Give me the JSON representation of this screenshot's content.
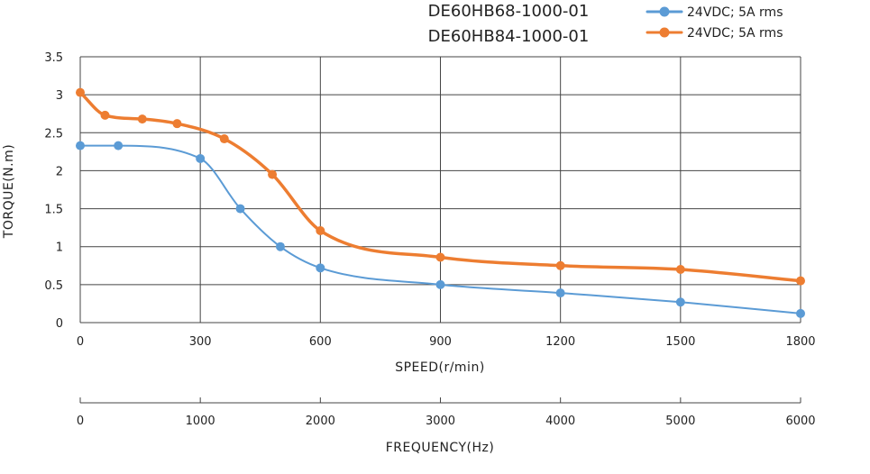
{
  "chart_data": {
    "type": "line",
    "titles": [
      "DE60HB68-1000-01",
      "DE60HB84-1000-01"
    ],
    "xlabel": "SPEED(r/min)",
    "ylabel": "TORQUE(N.m)",
    "secondary_xlabel": "FREQUENCY(Hz)",
    "xlim": [
      0,
      1800
    ],
    "ylim": [
      0,
      3.5
    ],
    "x_ticks": [
      "0",
      "300",
      "600",
      "900",
      "1200",
      "1500",
      "1800"
    ],
    "y_ticks": [
      "0",
      "0.5",
      "1",
      "1.5",
      "2",
      "2.5",
      "3",
      "3.5"
    ],
    "secondary_x_ticks": [
      "0",
      "1000",
      "2000",
      "3000",
      "4000",
      "5000",
      "6000"
    ],
    "grid": true,
    "legend_position": "top-right",
    "series": [
      {
        "name": "24VDC; 5A rms",
        "color": "#5b9bd5",
        "x": [
          0,
          95,
          300,
          400,
          500,
          600,
          900,
          1200,
          1500,
          1800
        ],
        "y": [
          2.33,
          2.33,
          2.16,
          1.5,
          1.0,
          0.72,
          0.5,
          0.39,
          0.27,
          0.12
        ]
      },
      {
        "name": "24VDC; 5A rms",
        "color": "#ed7d31",
        "x": [
          0,
          62,
          155,
          242,
          360,
          480,
          600,
          900,
          1200,
          1500,
          1800
        ],
        "y": [
          3.03,
          2.73,
          2.68,
          2.62,
          2.42,
          1.95,
          1.21,
          0.86,
          0.75,
          0.7,
          0.55
        ]
      }
    ]
  }
}
